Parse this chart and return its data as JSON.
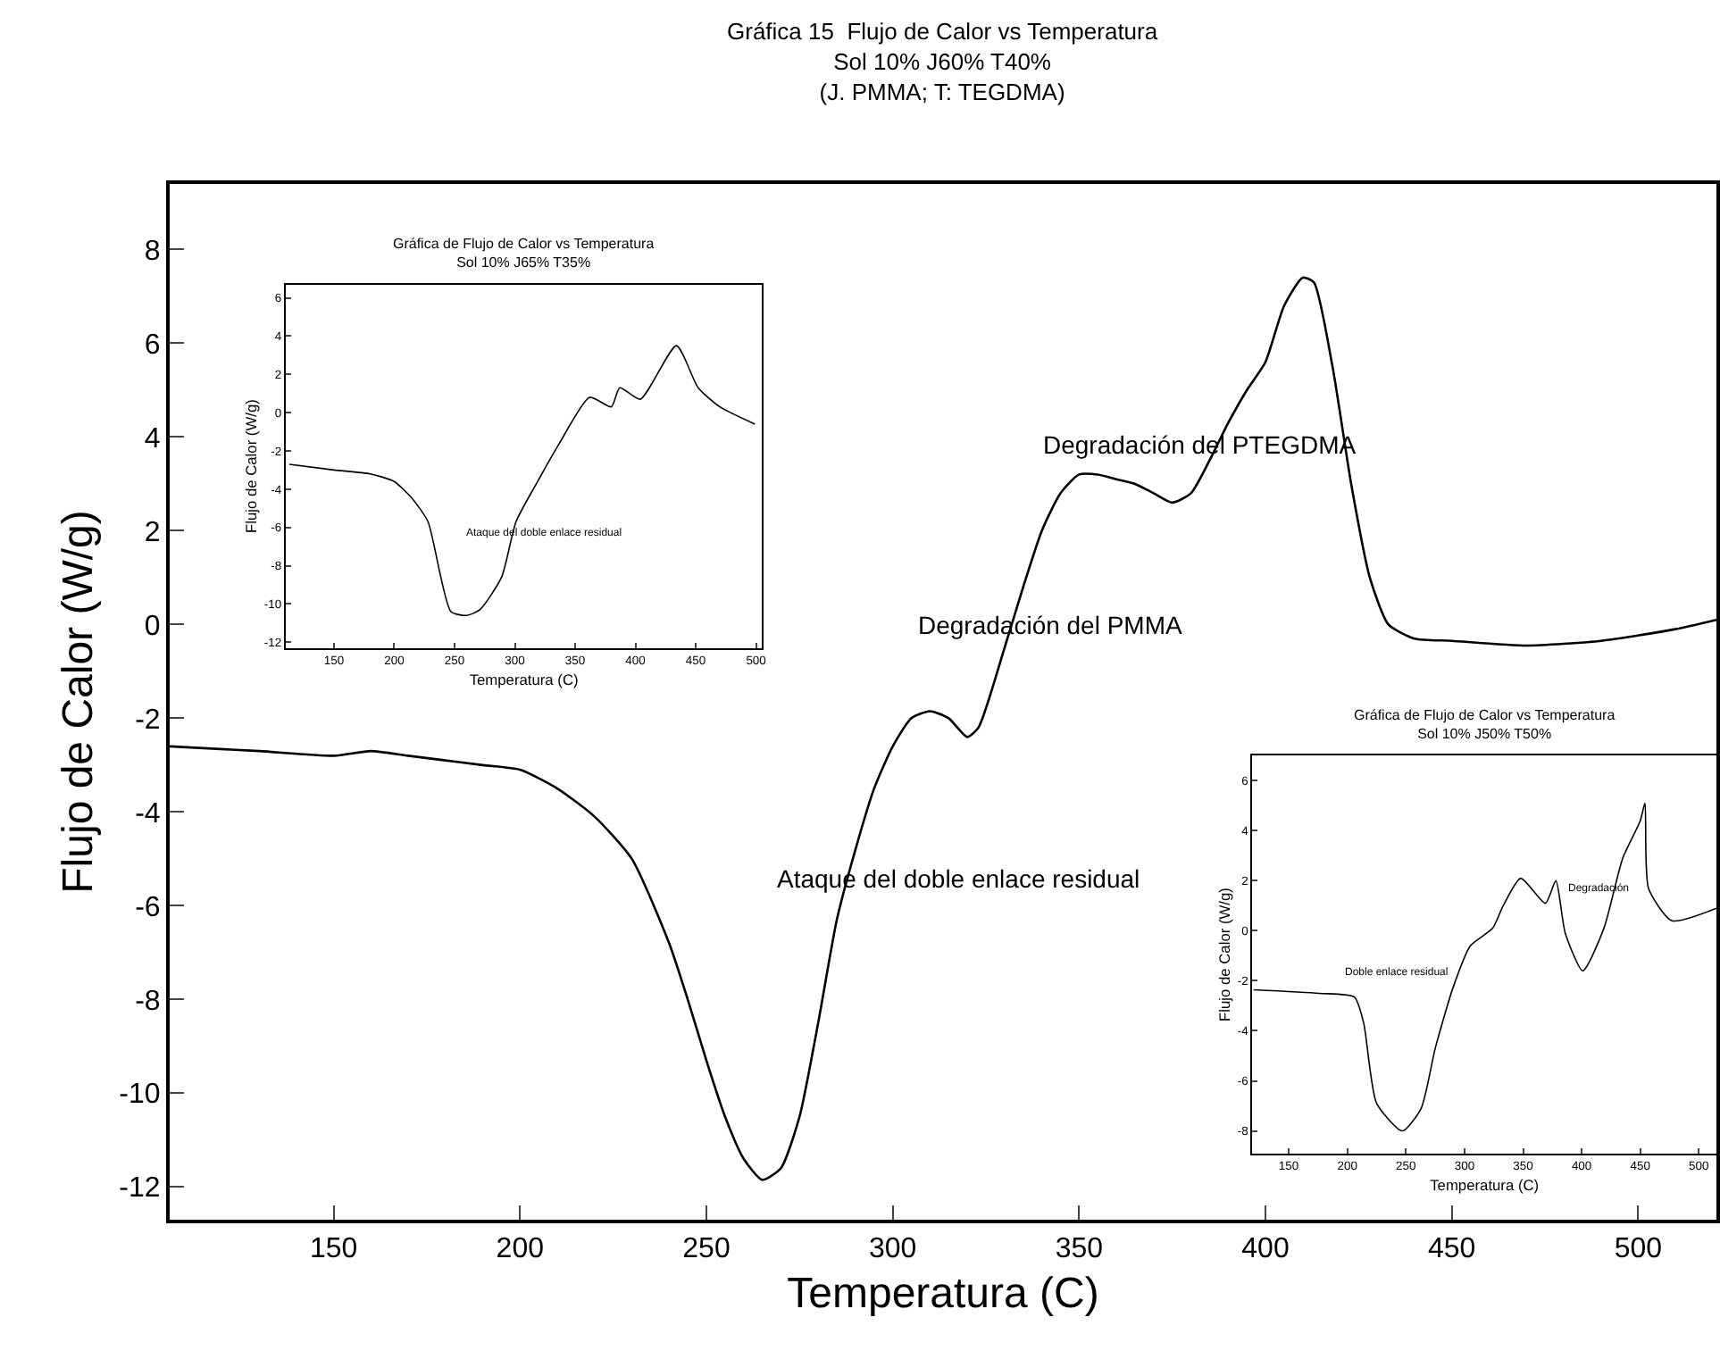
{
  "chart_data": [
    {
      "type": "line",
      "title": "Gráfica 15  Flujo de Calor vs Temperatura",
      "subtitle": "Sol 10% J60% T40%\n(J. PMMA; T: TEGDMA)",
      "xlabel": "Temperatura (C)",
      "ylabel": "Flujo de Calor (W/g)",
      "xlim": [
        106,
        521
      ],
      "xticks": [
        150,
        200,
        250,
        300,
        350,
        400,
        450,
        500
      ],
      "ylim": [
        -12.7,
        9.4
      ],
      "yticks": [
        -12,
        -10,
        -8,
        -6,
        -4,
        -2,
        0,
        2,
        4,
        6,
        8
      ],
      "marker": "none",
      "line_style": "solid",
      "series": [
        {
          "color": "#000000",
          "x": [
            106,
            130,
            150,
            160,
            170,
            190,
            200,
            210,
            220,
            230,
            240,
            245,
            250,
            255,
            260,
            265,
            270,
            275,
            280,
            285,
            290,
            295,
            300,
            305,
            310,
            315,
            320,
            323,
            330,
            335,
            340,
            345,
            350,
            355,
            360,
            365,
            370,
            375,
            380,
            385,
            390,
            395,
            400,
            405,
            410,
            413,
            418,
            423,
            428,
            433,
            440,
            450,
            470,
            490,
            510,
            521
          ],
          "values": [
            -2.6,
            -2.7,
            -2.8,
            -2.7,
            -2.8,
            -3.0,
            -3.1,
            -3.5,
            -4.1,
            -5.0,
            -6.8,
            -8.0,
            -9.3,
            -10.5,
            -11.4,
            -11.85,
            -11.6,
            -10.5,
            -8.5,
            -6.3,
            -4.8,
            -3.5,
            -2.6,
            -2.0,
            -1.85,
            -2.0,
            -2.4,
            -2.2,
            -0.5,
            0.8,
            2.0,
            2.8,
            3.2,
            3.2,
            3.1,
            3.0,
            2.8,
            2.6,
            2.8,
            3.5,
            4.3,
            5.0,
            5.6,
            6.8,
            7.4,
            7.3,
            5.5,
            3.0,
            1.0,
            0.0,
            -0.3,
            -0.35,
            -0.45,
            -0.35,
            -0.1,
            0.1
          ]
        }
      ],
      "annotations": [
        "Degradación del PTEGDMA",
        "Degradación del PMMA",
        "Ataque del doble enlace residual"
      ]
    },
    {
      "type": "line",
      "title": "Gráfica de Flujo de Calor vs Temperatura",
      "subtitle": "Sol 10% J65% T35%",
      "xlabel": "Temperatura (C)",
      "ylabel": "Flujo de Calor (W/g)",
      "xlim": [
        110,
        505
      ],
      "xticks": [
        150,
        200,
        250,
        300,
        350,
        400,
        450,
        500
      ],
      "ylim": [
        -12.3,
        6.7
      ],
      "yticks": [
        -12,
        -10,
        -8,
        -6,
        -4,
        -2,
        0,
        2,
        4,
        6
      ],
      "marker": "none",
      "line_style": "solid",
      "series": [
        {
          "color": "#000000",
          "x": [
            113,
            150,
            180,
            200,
            215,
            228,
            247,
            260,
            271,
            289,
            301,
            318,
            337,
            362,
            380,
            387,
            404,
            434,
            452,
            470,
            499
          ],
          "values": [
            -2.7,
            -3.0,
            -3.2,
            -3.6,
            -4.5,
            -5.7,
            -10.4,
            -10.6,
            -10.3,
            -8.6,
            -5.7,
            -3.7,
            -1.6,
            0.8,
            0.3,
            1.3,
            0.7,
            3.5,
            1.3,
            0.3,
            -0.6
          ]
        }
      ],
      "annotations": [
        "Ataque del doble enlace residual"
      ]
    },
    {
      "type": "line",
      "title": "Gráfica de Flujo de Calor vs Temperatura",
      "subtitle": "Sol 10% J50% T50%",
      "xlabel": "Temperatura (C)",
      "ylabel": "Flujo de Calor (W/g)",
      "xlim": [
        119,
        515
      ],
      "xticks": [
        150,
        200,
        250,
        300,
        350,
        400,
        450,
        500
      ],
      "ylim": [
        -8.9,
        7
      ],
      "yticks": [
        -8,
        -6,
        -4,
        -2,
        0,
        2,
        4,
        6
      ],
      "marker": "none",
      "line_style": "solid",
      "series": [
        {
          "color": "#000000",
          "x": [
            120,
            176,
            206,
            214,
            225,
            247,
            263,
            275,
            290,
            305,
            324,
            333,
            348,
            369,
            378,
            386,
            401,
            419,
            435,
            450,
            454,
            457,
            477,
            515
          ],
          "values": [
            -2.36,
            -2.5,
            -2.65,
            -3.7,
            -6.9,
            -8.0,
            -7.1,
            -4.7,
            -2.3,
            -0.6,
            0.1,
            1.0,
            2.1,
            1.1,
            2.0,
            -0.1,
            -1.6,
            0.1,
            2.9,
            4.4,
            5.1,
            1.7,
            0.4,
            0.9
          ]
        }
      ],
      "annotations": [
        "Doble enlace residual",
        "Degradación"
      ]
    }
  ]
}
